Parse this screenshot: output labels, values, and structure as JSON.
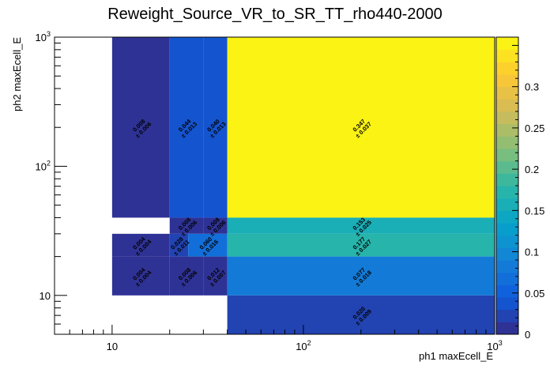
{
  "chart_data": {
    "type": "heatmap",
    "title": "Reweight_Source_VR_to_SR_TT_rho440-2000",
    "xlabel": "ph1 maxEcell_E",
    "ylabel": "ph2 maxEcell_E",
    "x_scale": "log",
    "y_scale": "log",
    "xlim": [
      5,
      1000
    ],
    "ylim": [
      5,
      1000
    ],
    "x_tick_labels": [
      {
        "value": 10,
        "base": "10",
        "exp": ""
      },
      {
        "value": 100,
        "base": "10",
        "exp": "2"
      },
      {
        "value": 1000,
        "base": "10",
        "exp": "3"
      }
    ],
    "y_tick_labels": [
      {
        "value": 10,
        "base": "10",
        "exp": ""
      },
      {
        "value": 100,
        "base": "10",
        "exp": "2"
      },
      {
        "value": 1000,
        "base": "10",
        "exp": "3"
      }
    ],
    "x_bin_edges": [
      10,
      20,
      25,
      30,
      40,
      1000
    ],
    "y_bin_edges": [
      5,
      10,
      20,
      25,
      30,
      40,
      1000
    ],
    "cells": [
      {
        "x": [
          10,
          20
        ],
        "y": [
          40,
          1000
        ],
        "value": 0.008,
        "error": 0.006,
        "label": "0.008",
        "err_label": "± 0.006"
      },
      {
        "x": [
          20,
          30
        ],
        "y": [
          40,
          1000
        ],
        "value": 0.044,
        "error": 0.013,
        "label": "0.044",
        "err_label": "± 0.013"
      },
      {
        "x": [
          30,
          40
        ],
        "y": [
          40,
          1000
        ],
        "value": 0.04,
        "error": 0.013,
        "label": "0.040",
        "err_label": "± 0.013"
      },
      {
        "x": [
          40,
          1000
        ],
        "y": [
          40,
          1000
        ],
        "value": 0.347,
        "error": 0.037,
        "label": "0.347",
        "err_label": "± 0.037"
      },
      {
        "x": [
          20,
          30
        ],
        "y": [
          30,
          40
        ],
        "value": 0.008,
        "error": 0.006,
        "label": "0.008",
        "err_label": "± 0.006"
      },
      {
        "x": [
          30,
          40
        ],
        "y": [
          30,
          40
        ],
        "value": 0.008,
        "error": 0.006,
        "label": "0.008",
        "err_label": "± 0.006"
      },
      {
        "x": [
          40,
          1000
        ],
        "y": [
          30,
          40
        ],
        "value": 0.153,
        "error": 0.025,
        "label": "0.153",
        "err_label": "± 0.025"
      },
      {
        "x": [
          10,
          20
        ],
        "y": [
          20,
          30
        ],
        "value": 0.004,
        "error": 0.004,
        "label": "0.004",
        "err_label": "± 0.004"
      },
      {
        "x": [
          20,
          25
        ],
        "y": [
          20,
          30
        ],
        "value": 0.028,
        "error": 0.011,
        "label": "0.028",
        "err_label": "± 0.011"
      },
      {
        "x": [
          25,
          40
        ],
        "y": [
          20,
          30
        ],
        "value": 0.06,
        "error": 0.016,
        "label": "0.060",
        "err_label": "± 0.016"
      },
      {
        "x": [
          40,
          1000
        ],
        "y": [
          20,
          30
        ],
        "value": 0.177,
        "error": 0.027,
        "label": "0.177",
        "err_label": "± 0.027"
      },
      {
        "x": [
          10,
          20
        ],
        "y": [
          10,
          20
        ],
        "value": 0.004,
        "error": 0.004,
        "label": "0.004",
        "err_label": "± 0.004"
      },
      {
        "x": [
          20,
          30
        ],
        "y": [
          10,
          20
        ],
        "value": 0.008,
        "error": 0.006,
        "label": "0.008",
        "err_label": "± 0.006"
      },
      {
        "x": [
          30,
          40
        ],
        "y": [
          10,
          20
        ],
        "value": 0.012,
        "error": 0.007,
        "label": "0.012",
        "err_label": "± 0.007"
      },
      {
        "x": [
          40,
          1000
        ],
        "y": [
          10,
          20
        ],
        "value": 0.077,
        "error": 0.018,
        "label": "0.077",
        "err_label": "± 0.018"
      },
      {
        "x": [
          40,
          1000
        ],
        "y": [
          5,
          10
        ],
        "value": 0.02,
        "error": 0.009,
        "label": "0.020",
        "err_label": "± 0.009"
      }
    ],
    "colorbar": {
      "min": 0,
      "max": 0.36,
      "ticks": [
        0,
        0.05,
        0.1,
        0.15,
        0.2,
        0.25,
        0.3
      ],
      "tick_labels": [
        "0",
        "0.05",
        "0.1",
        "0.15",
        "0.2",
        "0.25",
        "0.3"
      ],
      "palette": "parula",
      "palette_colors": [
        "#352a87",
        "#0f5cdd",
        "#1481d6",
        "#06a4ca",
        "#2eb7a4",
        "#87bf77",
        "#d1bb59",
        "#fec832",
        "#f9fb0e"
      ]
    },
    "grid": false,
    "legend": "none"
  }
}
